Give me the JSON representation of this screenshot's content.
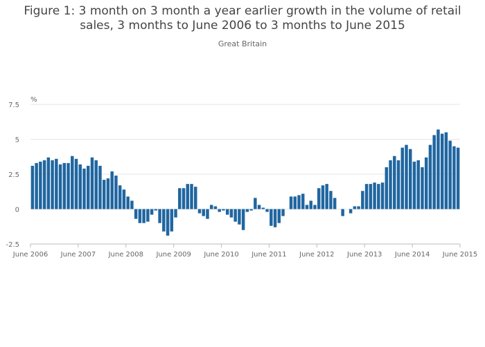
{
  "header": {
    "title_line1": "Figure 1: 3 month on 3 month a year earlier growth in the volume of retail",
    "title_line2": "sales, 3 months to June 2006 to 3 months to June 2015",
    "subtitle": "Great Britain"
  },
  "colors": {
    "bar": "#2066a0",
    "grid": "#e6e6e6",
    "axis": "#bbbbbb"
  },
  "chart_data": {
    "type": "bar",
    "title": "Figure 1: 3 month on 3 month a year earlier growth in the volume of retail sales, 3 months to June 2006 to 3 months to June 2015",
    "subtitle": "Great Britain",
    "ylabel": "%",
    "xlabel": "",
    "ylim": [
      -2.5,
      7.5
    ],
    "yticks": [
      "7.5",
      "5",
      "2.5",
      "0",
      "-2.5"
    ],
    "x_tick_labels": [
      "June 2006",
      "June 2007",
      "June 2008",
      "June 2009",
      "June 2010",
      "June 2011",
      "June 2012",
      "June 2013",
      "June 2014",
      "June 2015"
    ],
    "grid": true,
    "legend": "none",
    "x_start": "June 2006",
    "x_end": "June 2015",
    "values": [
      3.1,
      3.3,
      3.4,
      3.5,
      3.7,
      3.5,
      3.6,
      3.2,
      3.3,
      3.3,
      3.8,
      3.6,
      3.2,
      2.9,
      3.1,
      3.7,
      3.5,
      3.1,
      2.1,
      2.2,
      2.7,
      2.4,
      1.7,
      1.4,
      0.9,
      0.6,
      -0.7,
      -1.0,
      -1.0,
      -0.9,
      -0.4,
      -0.1,
      -1.0,
      -1.6,
      -1.9,
      -1.6,
      -0.6,
      1.5,
      1.5,
      1.8,
      1.8,
      1.6,
      -0.3,
      -0.5,
      -0.7,
      0.3,
      0.2,
      -0.2,
      -0.1,
      -0.4,
      -0.6,
      -0.9,
      -1.1,
      -1.5,
      -0.2,
      -0.1,
      0.8,
      0.3,
      0.1,
      -0.2,
      -1.2,
      -1.3,
      -1.0,
      -0.5,
      0.0,
      0.9,
      0.9,
      1.0,
      1.1,
      0.3,
      0.6,
      0.3,
      1.5,
      1.7,
      1.8,
      1.3,
      0.8,
      0.0,
      -0.5,
      0.0,
      -0.3,
      0.2,
      0.2,
      1.3,
      1.8,
      1.8,
      1.9,
      1.8,
      1.9,
      3.0,
      3.5,
      3.8,
      3.5,
      4.4,
      4.6,
      4.3,
      3.4,
      3.5,
      3.0,
      3.7,
      4.6,
      5.3,
      5.7,
      5.4,
      5.5,
      4.9,
      4.5,
      4.4
    ]
  }
}
